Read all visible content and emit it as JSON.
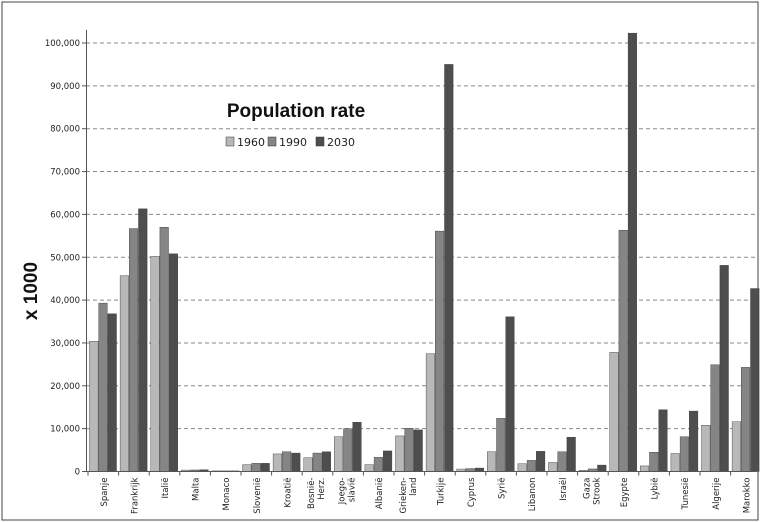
{
  "chart_data": {
    "type": "bar",
    "title": "Population rate",
    "ylabel": "x 1000",
    "xlabel": "",
    "ylim": [
      0,
      100000
    ],
    "yticks": [
      "0",
      "10,000",
      "20,000",
      "30,000",
      "40,000",
      "50,000",
      "60,000",
      "70,000",
      "80,000",
      "90,000",
      "100,000"
    ],
    "grid": true,
    "legend_position": "top-center",
    "categories": [
      [
        "Spanje"
      ],
      [
        "Frankrijk"
      ],
      [
        "Italië"
      ],
      [
        "Malta"
      ],
      [
        "Monaco"
      ],
      [
        "Slovenië"
      ],
      [
        "Kroatië"
      ],
      [
        "Bosnië-",
        "Herz."
      ],
      [
        "Joego-",
        "slavië"
      ],
      [
        "Albanië"
      ],
      [
        "Grieken-",
        "land"
      ],
      [
        "Turkije"
      ],
      [
        "Cyprus"
      ],
      [
        "Syrië"
      ],
      [
        "Libanon"
      ],
      [
        "Israël"
      ],
      [
        "Gaza",
        "Strook"
      ],
      [
        "Egypte"
      ],
      [
        "Lybië"
      ],
      [
        "Tunesië"
      ],
      [
        "Algerije"
      ],
      [
        "Marokko"
      ]
    ],
    "series": [
      {
        "name": "1960",
        "color": "#b8b8b8",
        "values": [
          30400,
          45700,
          50200,
          330,
          22,
          1600,
          4100,
          3200,
          8100,
          1600,
          8300,
          27500,
          570,
          4600,
          1800,
          2100,
          300,
          27800,
          1300,
          4200,
          10800,
          11600
        ]
      },
      {
        "name": "1990",
        "color": "#858585",
        "values": [
          39300,
          56700,
          57000,
          360,
          30,
          1900,
          4600,
          4300,
          10000,
          3300,
          10100,
          56100,
          680,
          12400,
          2600,
          4600,
          600,
          56300,
          4500,
          8100,
          24900,
          24300
        ]
      },
      {
        "name": "2030",
        "color": "#4e4e4e",
        "values": [
          36800,
          61300,
          50800,
          400,
          35,
          1900,
          4300,
          4600,
          11500,
          4800,
          9700,
          95000,
          800,
          36100,
          4700,
          8000,
          1500,
          102300,
          14400,
          14100,
          48100,
          42700
        ]
      }
    ]
  }
}
